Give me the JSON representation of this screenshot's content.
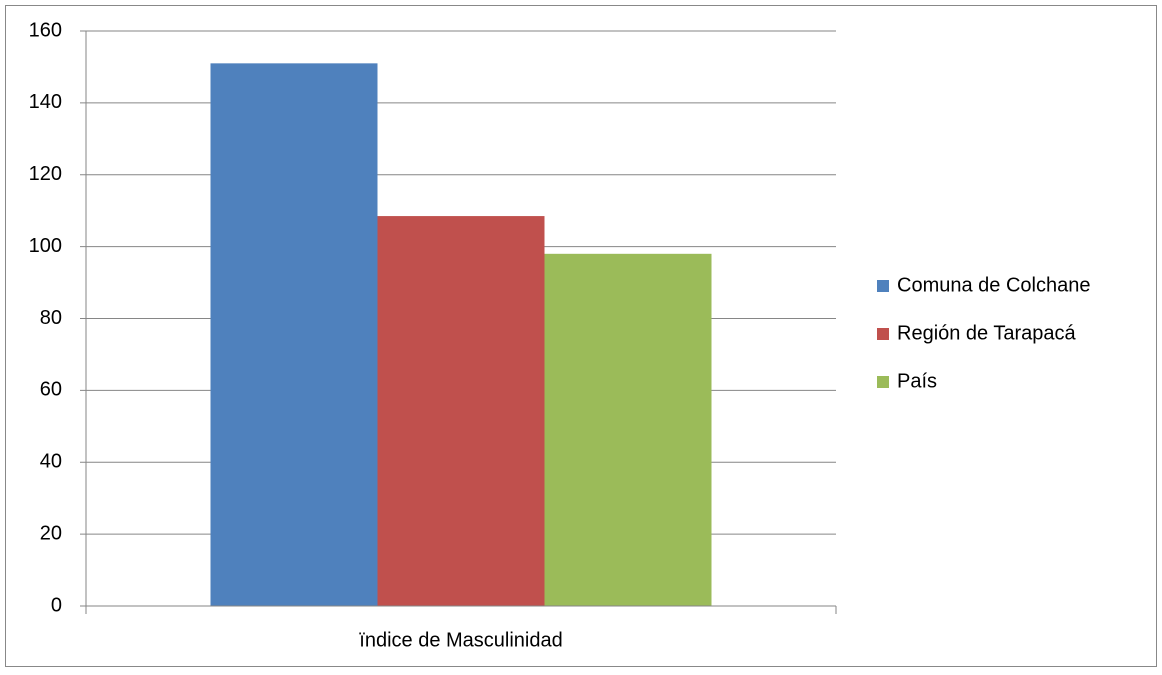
{
  "chart_data": {
    "type": "bar",
    "categories": [
      "ïndice de Masculinidad"
    ],
    "series": [
      {
        "name": "Comuna de Colchane",
        "color": "#4f81bd",
        "values": [
          151
        ]
      },
      {
        "name": "Región de Tarapacá",
        "color": "#c0504d",
        "values": [
          108.5
        ]
      },
      {
        "name": "País",
        "color": "#9bbb59",
        "values": [
          98
        ]
      }
    ],
    "ylim": [
      0,
      160
    ],
    "yticks": [
      0,
      20,
      40,
      60,
      80,
      100,
      120,
      140,
      160
    ],
    "grid": true,
    "legend": "right"
  }
}
